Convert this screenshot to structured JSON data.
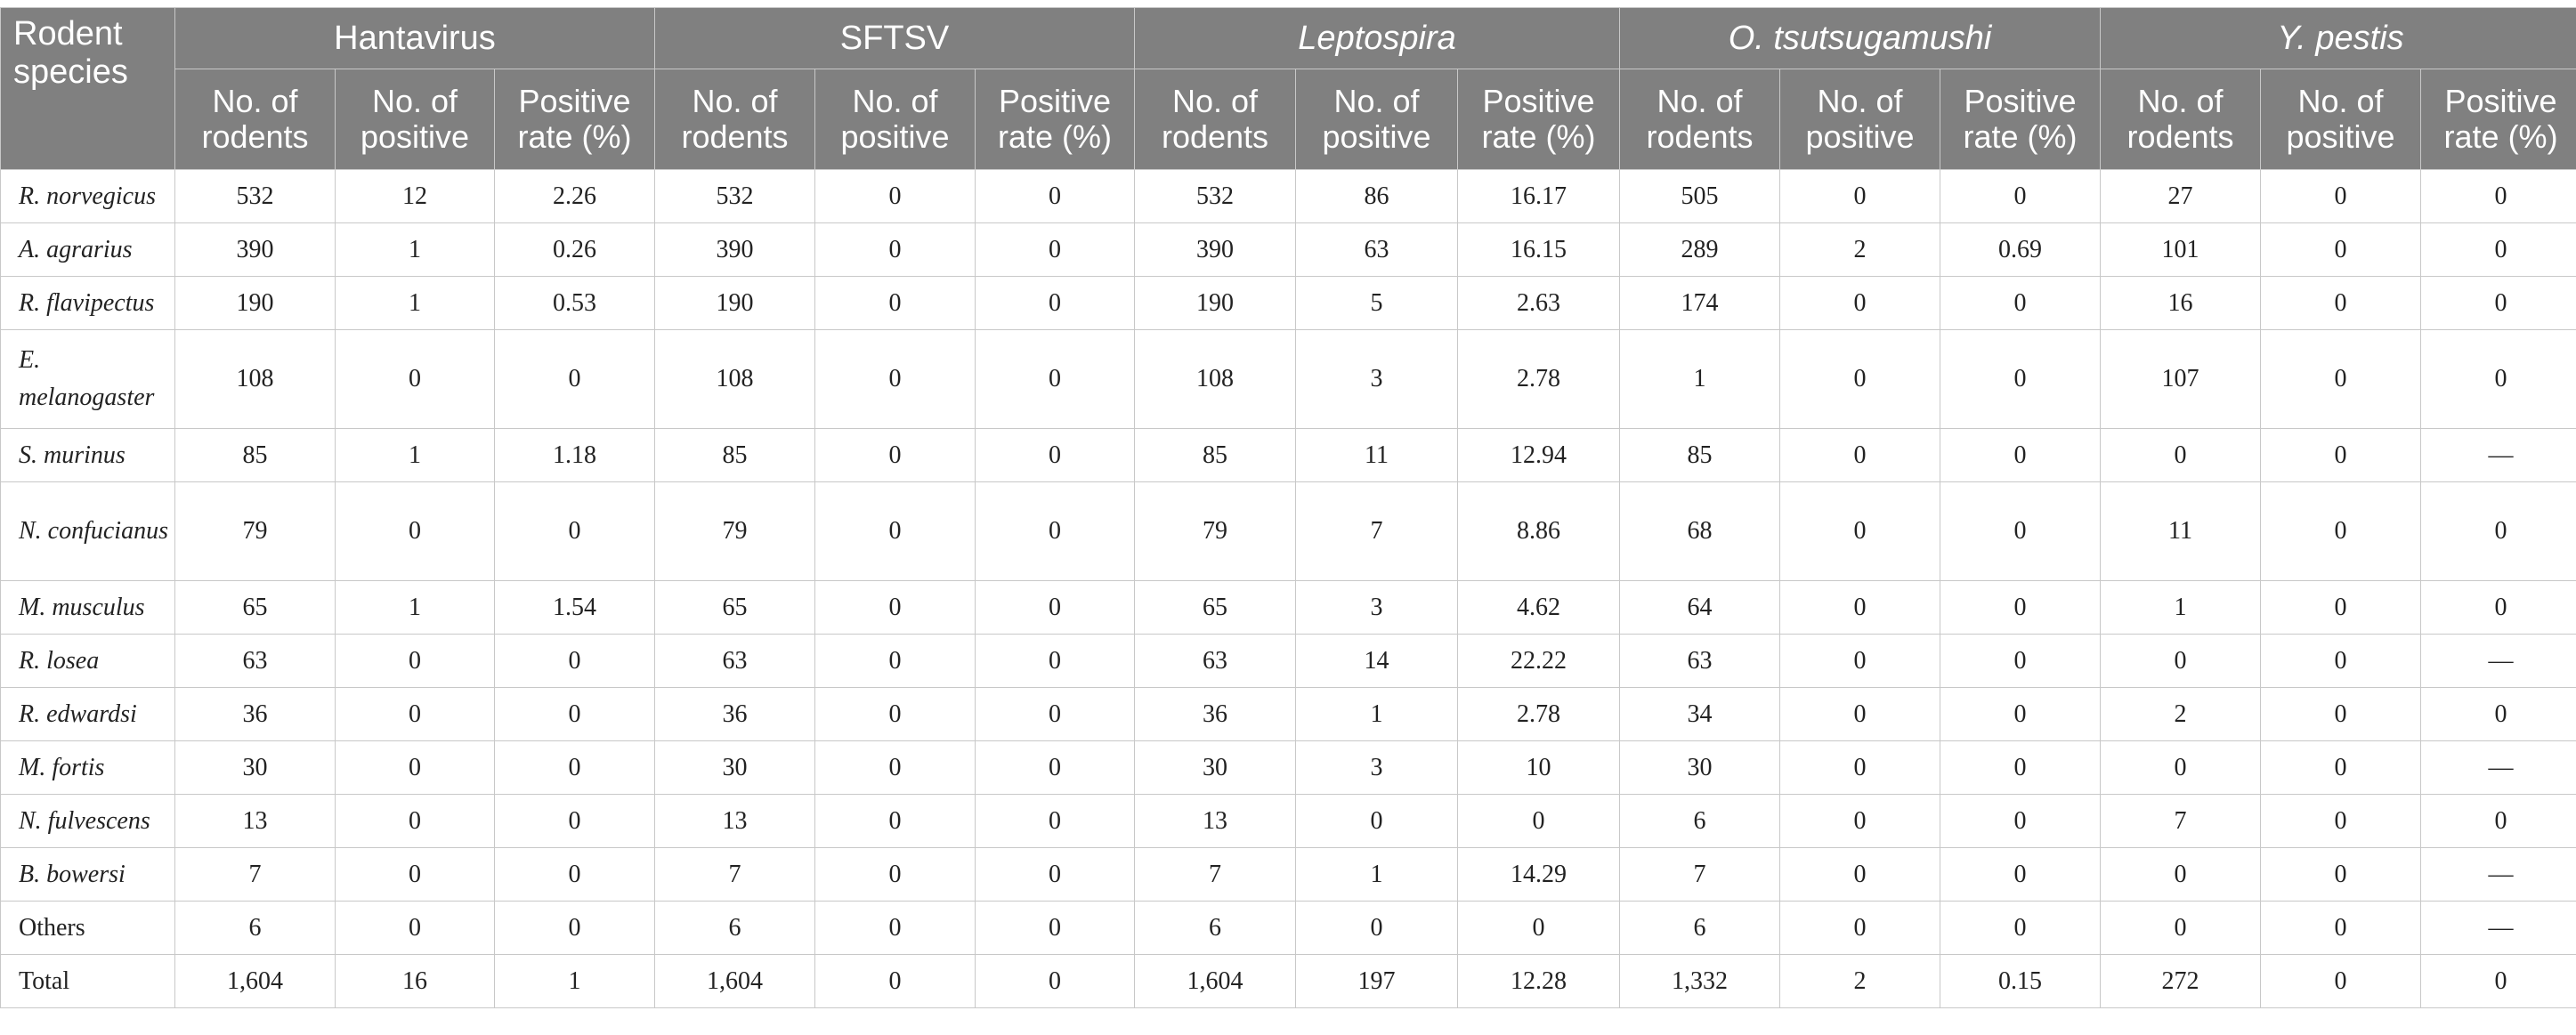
{
  "table": {
    "species_header": "Rodent species",
    "pathogens": [
      {
        "name": "Hantavirus",
        "italic": false
      },
      {
        "name": "SFTSV",
        "italic": false
      },
      {
        "name": "Leptospira",
        "italic": true
      },
      {
        "name": "O. tsutsugamushi",
        "italic": true
      },
      {
        "name": "Y. pestis",
        "italic": true
      }
    ],
    "sub_headers": [
      "No. of rodents",
      "No. of positive",
      "Positive rate (%)"
    ],
    "rows": [
      {
        "species": "R. norvegicus",
        "italic": true,
        "values": [
          "532",
          "12",
          "2.26",
          "532",
          "0",
          "0",
          "532",
          "86",
          "16.17",
          "505",
          "0",
          "0",
          "27",
          "0",
          "0"
        ]
      },
      {
        "species": "A. agrarius",
        "italic": true,
        "values": [
          "390",
          "1",
          "0.26",
          "390",
          "0",
          "0",
          "390",
          "63",
          "16.15",
          "289",
          "2",
          "0.69",
          "101",
          "0",
          "0"
        ]
      },
      {
        "species": "R. flavipectus",
        "italic": true,
        "values": [
          "190",
          "1",
          "0.53",
          "190",
          "0",
          "0",
          "190",
          "5",
          "2.63",
          "174",
          "0",
          "0",
          "16",
          "0",
          "0"
        ]
      },
      {
        "species": "E. melanogaster",
        "italic": true,
        "values": [
          "108",
          "0",
          "0",
          "108",
          "0",
          "0",
          "108",
          "3",
          "2.78",
          "1",
          "0",
          "0",
          "107",
          "0",
          "0"
        ]
      },
      {
        "species": "S. murinus",
        "italic": true,
        "values": [
          "85",
          "1",
          "1.18",
          "85",
          "0",
          "0",
          "85",
          "11",
          "12.94",
          "85",
          "0",
          "0",
          "0",
          "0",
          "—"
        ]
      },
      {
        "species": "N. confucianus",
        "italic": true,
        "values": [
          "79",
          "0",
          "0",
          "79",
          "0",
          "0",
          "79",
          "7",
          "8.86",
          "68",
          "0",
          "0",
          "11",
          "0",
          "0"
        ]
      },
      {
        "species": "M. musculus",
        "italic": true,
        "values": [
          "65",
          "1",
          "1.54",
          "65",
          "0",
          "0",
          "65",
          "3",
          "4.62",
          "64",
          "0",
          "0",
          "1",
          "0",
          "0"
        ]
      },
      {
        "species": "R. losea",
        "italic": true,
        "values": [
          "63",
          "0",
          "0",
          "63",
          "0",
          "0",
          "63",
          "14",
          "22.22",
          "63",
          "0",
          "0",
          "0",
          "0",
          "—"
        ]
      },
      {
        "species": "R. edwardsi",
        "italic": true,
        "values": [
          "36",
          "0",
          "0",
          "36",
          "0",
          "0",
          "36",
          "1",
          "2.78",
          "34",
          "0",
          "0",
          "2",
          "0",
          "0"
        ]
      },
      {
        "species": "M. fortis",
        "italic": true,
        "values": [
          "30",
          "0",
          "0",
          "30",
          "0",
          "0",
          "30",
          "3",
          "10",
          "30",
          "0",
          "0",
          "0",
          "0",
          "—"
        ]
      },
      {
        "species": "N. fulvescens",
        "italic": true,
        "values": [
          "13",
          "0",
          "0",
          "13",
          "0",
          "0",
          "13",
          "0",
          "0",
          "6",
          "0",
          "0",
          "7",
          "0",
          "0"
        ]
      },
      {
        "species": "B. bowersi",
        "italic": true,
        "values": [
          "7",
          "0",
          "0",
          "7",
          "0",
          "0",
          "7",
          "1",
          "14.29",
          "7",
          "0",
          "0",
          "0",
          "0",
          "—"
        ]
      },
      {
        "species": "Others",
        "italic": false,
        "values": [
          "6",
          "0",
          "0",
          "6",
          "0",
          "0",
          "6",
          "0",
          "0",
          "6",
          "0",
          "0",
          "0",
          "0",
          "—"
        ]
      },
      {
        "species": "Total",
        "italic": false,
        "values": [
          "1,604",
          "16",
          "1",
          "1,604",
          "0",
          "0",
          "1,604",
          "197",
          "12.28",
          "1,332",
          "2",
          "0.15",
          "272",
          "0",
          "0"
        ]
      }
    ]
  }
}
